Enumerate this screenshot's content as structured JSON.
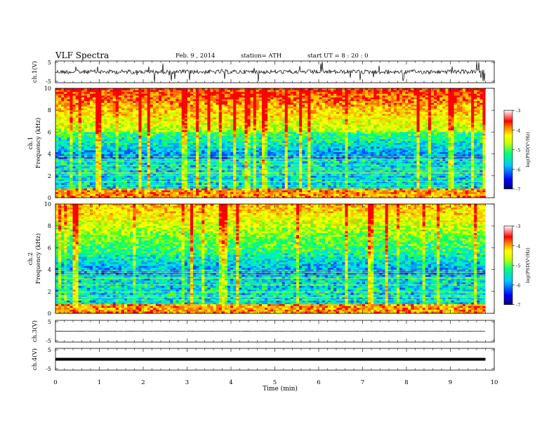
{
  "header": {
    "title": "VLF  Spectra",
    "date": "Feb. 9  , 2014",
    "station": "station= ATH",
    "start": "start  UT  =   8  : 20 : 0"
  },
  "chart_data": [
    {
      "type": "line",
      "panel": "ch1-waveform",
      "ylabel": "ch.1(V)",
      "yticks": [
        "5",
        "-5"
      ],
      "ylim": [
        -5,
        5
      ],
      "xlim": [
        0,
        10
      ],
      "x_end": 9.8,
      "description_level": 0.5
    },
    {
      "type": "heatmap",
      "panel": "ch1-spectrogram",
      "ylabel_channel": "ch.1",
      "ylabel": "Frequency  (kHz)",
      "yticks": [
        "0",
        "2",
        "4",
        "6",
        "8",
        "10"
      ],
      "ylim": [
        0,
        10
      ],
      "xlim": [
        0,
        10
      ],
      "x_end": 9.8,
      "colorbar": {
        "label": "log(PSD(V²/Hz)",
        "ticks": [
          "-3",
          "-4",
          "-5",
          "-6",
          "-7"
        ],
        "range": [
          -7,
          -3
        ],
        "colors": [
          "#000070",
          "#0000ff",
          "#00c8ff",
          "#00ff80",
          "#c8ff00",
          "#ffff00",
          "#ff8000",
          "#ff0000",
          "#ffffff"
        ]
      }
    },
    {
      "type": "heatmap",
      "panel": "ch2-spectrogram",
      "ylabel_channel": "ch.2",
      "ylabel": "Frequency  (kHz)",
      "yticks": [
        "0",
        "2",
        "4",
        "6",
        "8",
        "10"
      ],
      "ylim": [
        0,
        10
      ],
      "xlim": [
        0,
        10
      ],
      "x_end": 9.8,
      "colorbar": {
        "label": "log(PSD(V²/Hz)",
        "ticks": [
          "-3",
          "-4",
          "-5",
          "-6",
          "-7"
        ],
        "range": [
          -7,
          -3
        ]
      }
    },
    {
      "type": "line",
      "panel": "ch3-waveform",
      "ylabel": "ch.3(V)",
      "yticks": [
        "5",
        "-5"
      ],
      "ylim": [
        -5,
        5
      ],
      "xlim": [
        0,
        10
      ],
      "x_end": 9.8,
      "level": 0.3
    },
    {
      "type": "line",
      "panel": "ch4-waveform",
      "ylabel": "ch.4(V)",
      "yticks": [
        "5",
        "-5"
      ],
      "ylim": [
        -5,
        5
      ],
      "xlim": [
        0,
        10
      ],
      "x_end": 9.8,
      "level": 0.2
    }
  ],
  "xaxis": {
    "label": "Time  (min)",
    "ticks": [
      "0",
      "1",
      "2",
      "3",
      "4",
      "5",
      "6",
      "7",
      "8",
      "9",
      "10"
    ]
  }
}
